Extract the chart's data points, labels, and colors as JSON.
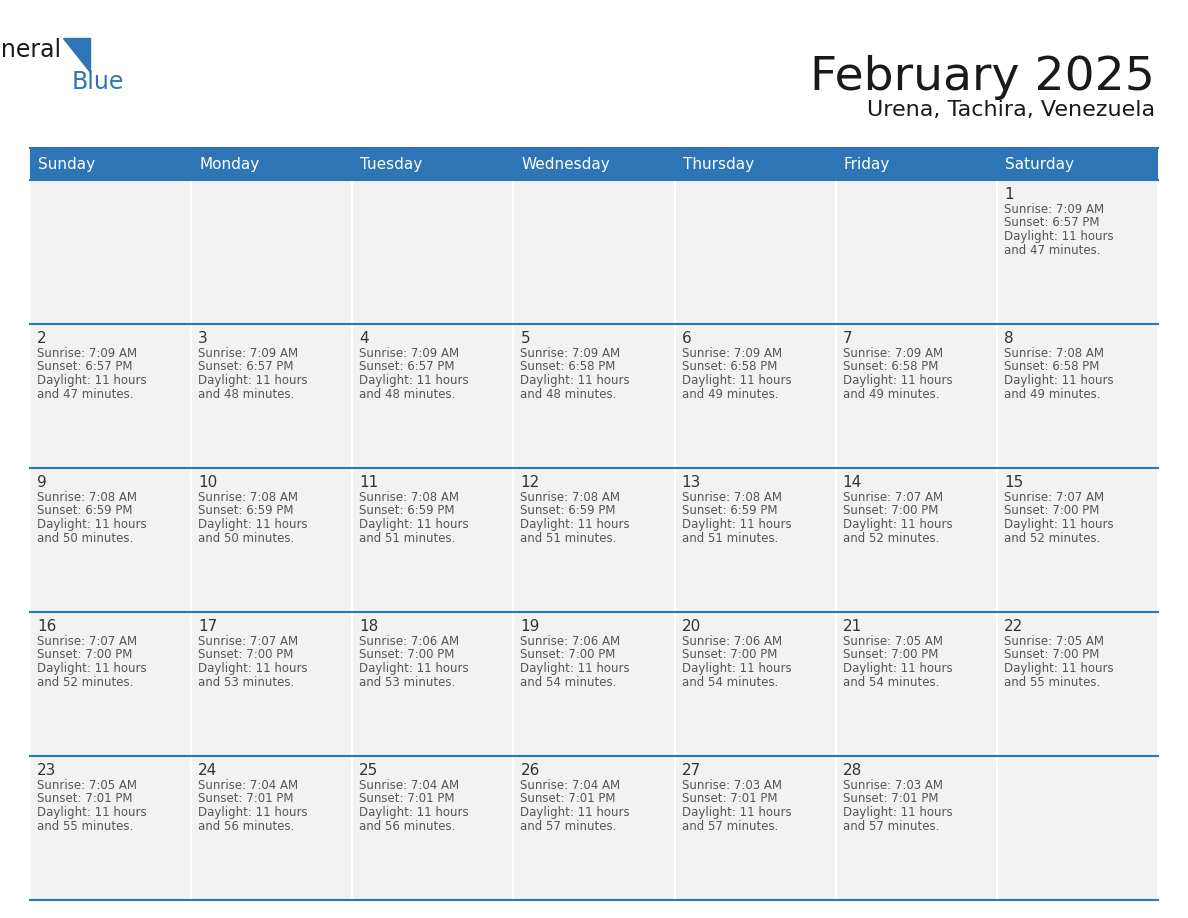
{
  "title": "February 2025",
  "subtitle": "Urena, Tachira, Venezuela",
  "header_bg": "#2E75B6",
  "header_text": "#FFFFFF",
  "cell_bg": "#F2F2F2",
  "border_color": "#2E75B6",
  "text_color": "#555555",
  "day_num_color": "#333333",
  "title_color": "#1a1a1a",
  "subtitle_color": "#1a1a1a",
  "logo_dark_color": "#1a1a1a",
  "logo_blue_color": "#2E75B6",
  "days_of_week": [
    "Sunday",
    "Monday",
    "Tuesday",
    "Wednesday",
    "Thursday",
    "Friday",
    "Saturday"
  ],
  "calendar_data": [
    [
      null,
      null,
      null,
      null,
      null,
      null,
      {
        "day": 1,
        "sunrise": "7:09 AM",
        "sunset": "6:57 PM",
        "daylight": "11 hours",
        "daylight2": "and 47 minutes."
      }
    ],
    [
      {
        "day": 2,
        "sunrise": "7:09 AM",
        "sunset": "6:57 PM",
        "daylight": "11 hours",
        "daylight2": "and 47 minutes."
      },
      {
        "day": 3,
        "sunrise": "7:09 AM",
        "sunset": "6:57 PM",
        "daylight": "11 hours",
        "daylight2": "and 48 minutes."
      },
      {
        "day": 4,
        "sunrise": "7:09 AM",
        "sunset": "6:57 PM",
        "daylight": "11 hours",
        "daylight2": "and 48 minutes."
      },
      {
        "day": 5,
        "sunrise": "7:09 AM",
        "sunset": "6:58 PM",
        "daylight": "11 hours",
        "daylight2": "and 48 minutes."
      },
      {
        "day": 6,
        "sunrise": "7:09 AM",
        "sunset": "6:58 PM",
        "daylight": "11 hours",
        "daylight2": "and 49 minutes."
      },
      {
        "day": 7,
        "sunrise": "7:09 AM",
        "sunset": "6:58 PM",
        "daylight": "11 hours",
        "daylight2": "and 49 minutes."
      },
      {
        "day": 8,
        "sunrise": "7:08 AM",
        "sunset": "6:58 PM",
        "daylight": "11 hours",
        "daylight2": "and 49 minutes."
      }
    ],
    [
      {
        "day": 9,
        "sunrise": "7:08 AM",
        "sunset": "6:59 PM",
        "daylight": "11 hours",
        "daylight2": "and 50 minutes."
      },
      {
        "day": 10,
        "sunrise": "7:08 AM",
        "sunset": "6:59 PM",
        "daylight": "11 hours",
        "daylight2": "and 50 minutes."
      },
      {
        "day": 11,
        "sunrise": "7:08 AM",
        "sunset": "6:59 PM",
        "daylight": "11 hours",
        "daylight2": "and 51 minutes."
      },
      {
        "day": 12,
        "sunrise": "7:08 AM",
        "sunset": "6:59 PM",
        "daylight": "11 hours",
        "daylight2": "and 51 minutes."
      },
      {
        "day": 13,
        "sunrise": "7:08 AM",
        "sunset": "6:59 PM",
        "daylight": "11 hours",
        "daylight2": "and 51 minutes."
      },
      {
        "day": 14,
        "sunrise": "7:07 AM",
        "sunset": "7:00 PM",
        "daylight": "11 hours",
        "daylight2": "and 52 minutes."
      },
      {
        "day": 15,
        "sunrise": "7:07 AM",
        "sunset": "7:00 PM",
        "daylight": "11 hours",
        "daylight2": "and 52 minutes."
      }
    ],
    [
      {
        "day": 16,
        "sunrise": "7:07 AM",
        "sunset": "7:00 PM",
        "daylight": "11 hours",
        "daylight2": "and 52 minutes."
      },
      {
        "day": 17,
        "sunrise": "7:07 AM",
        "sunset": "7:00 PM",
        "daylight": "11 hours",
        "daylight2": "and 53 minutes."
      },
      {
        "day": 18,
        "sunrise": "7:06 AM",
        "sunset": "7:00 PM",
        "daylight": "11 hours",
        "daylight2": "and 53 minutes."
      },
      {
        "day": 19,
        "sunrise": "7:06 AM",
        "sunset": "7:00 PM",
        "daylight": "11 hours",
        "daylight2": "and 54 minutes."
      },
      {
        "day": 20,
        "sunrise": "7:06 AM",
        "sunset": "7:00 PM",
        "daylight": "11 hours",
        "daylight2": "and 54 minutes."
      },
      {
        "day": 21,
        "sunrise": "7:05 AM",
        "sunset": "7:00 PM",
        "daylight": "11 hours",
        "daylight2": "and 54 minutes."
      },
      {
        "day": 22,
        "sunrise": "7:05 AM",
        "sunset": "7:00 PM",
        "daylight": "11 hours",
        "daylight2": "and 55 minutes."
      }
    ],
    [
      {
        "day": 23,
        "sunrise": "7:05 AM",
        "sunset": "7:01 PM",
        "daylight": "11 hours",
        "daylight2": "and 55 minutes."
      },
      {
        "day": 24,
        "sunrise": "7:04 AM",
        "sunset": "7:01 PM",
        "daylight": "11 hours",
        "daylight2": "and 56 minutes."
      },
      {
        "day": 25,
        "sunrise": "7:04 AM",
        "sunset": "7:01 PM",
        "daylight": "11 hours",
        "daylight2": "and 56 minutes."
      },
      {
        "day": 26,
        "sunrise": "7:04 AM",
        "sunset": "7:01 PM",
        "daylight": "11 hours",
        "daylight2": "and 57 minutes."
      },
      {
        "day": 27,
        "sunrise": "7:03 AM",
        "sunset": "7:01 PM",
        "daylight": "11 hours",
        "daylight2": "and 57 minutes."
      },
      {
        "day": 28,
        "sunrise": "7:03 AM",
        "sunset": "7:01 PM",
        "daylight": "11 hours",
        "daylight2": "and 57 minutes."
      },
      null
    ]
  ]
}
